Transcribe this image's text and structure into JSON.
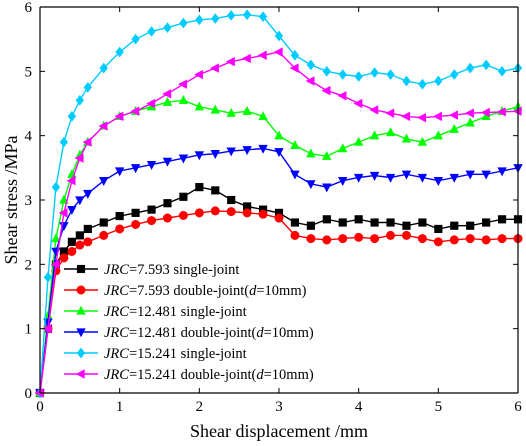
{
  "chart_data": {
    "type": "line",
    "xlabel": "Shear displacement /mm",
    "ylabel": "Shear stress /MPa",
    "xlim": [
      0,
      6
    ],
    "ylim": [
      0,
      6
    ],
    "x_ticks": [
      "0",
      "1",
      "2",
      "3",
      "4",
      "5",
      "6"
    ],
    "y_ticks": [
      "0",
      "1",
      "2",
      "3",
      "4",
      "5",
      "6"
    ],
    "grid": false,
    "legend_position": "bottom-left",
    "series": [
      {
        "name_italic": "JRC",
        "name_rest": "=7.593 single-joint",
        "name_sub_italic": "",
        "name_tail": "",
        "color": "#000000",
        "marker": "square",
        "points": [
          [
            0,
            0
          ],
          [
            0.1,
            1.0
          ],
          [
            0.2,
            2.0
          ],
          [
            0.3,
            2.2
          ],
          [
            0.4,
            2.35
          ],
          [
            0.5,
            2.45
          ],
          [
            0.6,
            2.55
          ],
          [
            0.8,
            2.65
          ],
          [
            1.0,
            2.75
          ],
          [
            1.2,
            2.8
          ],
          [
            1.4,
            2.85
          ],
          [
            1.6,
            2.95
          ],
          [
            1.8,
            3.05
          ],
          [
            2.0,
            3.2
          ],
          [
            2.2,
            3.15
          ],
          [
            2.4,
            3.0
          ],
          [
            2.6,
            2.9
          ],
          [
            2.8,
            2.85
          ],
          [
            3.0,
            2.8
          ],
          [
            3.2,
            2.65
          ],
          [
            3.4,
            2.6
          ],
          [
            3.6,
            2.7
          ],
          [
            3.8,
            2.65
          ],
          [
            4.0,
            2.7
          ],
          [
            4.2,
            2.65
          ],
          [
            4.4,
            2.65
          ],
          [
            4.6,
            2.6
          ],
          [
            4.8,
            2.65
          ],
          [
            5.0,
            2.55
          ],
          [
            5.2,
            2.6
          ],
          [
            5.4,
            2.6
          ],
          [
            5.6,
            2.65
          ],
          [
            5.8,
            2.7
          ],
          [
            6.0,
            2.7
          ]
        ]
      },
      {
        "name_italic": "JRC",
        "name_rest": "=7.593 double-joint(",
        "name_sub_italic": "d",
        "name_tail": "=10mm)",
        "color": "#ff0000",
        "marker": "circle",
        "points": [
          [
            0,
            0
          ],
          [
            0.1,
            1.0
          ],
          [
            0.2,
            1.9
          ],
          [
            0.3,
            2.1
          ],
          [
            0.4,
            2.2
          ],
          [
            0.5,
            2.3
          ],
          [
            0.6,
            2.35
          ],
          [
            0.8,
            2.45
          ],
          [
            1.0,
            2.55
          ],
          [
            1.2,
            2.62
          ],
          [
            1.4,
            2.68
          ],
          [
            1.6,
            2.72
          ],
          [
            1.8,
            2.76
          ],
          [
            2.0,
            2.8
          ],
          [
            2.2,
            2.83
          ],
          [
            2.4,
            2.82
          ],
          [
            2.6,
            2.8
          ],
          [
            2.8,
            2.78
          ],
          [
            3.0,
            2.72
          ],
          [
            3.2,
            2.45
          ],
          [
            3.4,
            2.4
          ],
          [
            3.6,
            2.38
          ],
          [
            3.8,
            2.4
          ],
          [
            4.0,
            2.42
          ],
          [
            4.2,
            2.4
          ],
          [
            4.4,
            2.45
          ],
          [
            4.6,
            2.45
          ],
          [
            4.8,
            2.4
          ],
          [
            5.0,
            2.35
          ],
          [
            5.2,
            2.38
          ],
          [
            5.4,
            2.4
          ],
          [
            5.6,
            2.38
          ],
          [
            5.8,
            2.4
          ],
          [
            6.0,
            2.4
          ]
        ]
      },
      {
        "name_italic": "JRC",
        "name_rest": "=12.481 single-joint",
        "name_sub_italic": "",
        "name_tail": "",
        "color": "#00ff00",
        "marker": "triangle-up",
        "points": [
          [
            0,
            0
          ],
          [
            0.1,
            1.2
          ],
          [
            0.2,
            2.4
          ],
          [
            0.3,
            3.0
          ],
          [
            0.4,
            3.4
          ],
          [
            0.5,
            3.7
          ],
          [
            0.6,
            3.9
          ],
          [
            0.8,
            4.15
          ],
          [
            1.0,
            4.3
          ],
          [
            1.2,
            4.38
          ],
          [
            1.4,
            4.45
          ],
          [
            1.6,
            4.52
          ],
          [
            1.8,
            4.55
          ],
          [
            2.0,
            4.45
          ],
          [
            2.2,
            4.4
          ],
          [
            2.4,
            4.35
          ],
          [
            2.6,
            4.38
          ],
          [
            2.8,
            4.3
          ],
          [
            3.0,
            4.0
          ],
          [
            3.2,
            3.85
          ],
          [
            3.4,
            3.72
          ],
          [
            3.6,
            3.68
          ],
          [
            3.8,
            3.8
          ],
          [
            4.0,
            3.9
          ],
          [
            4.2,
            4.0
          ],
          [
            4.4,
            4.05
          ],
          [
            4.6,
            3.95
          ],
          [
            4.8,
            3.9
          ],
          [
            5.0,
            4.0
          ],
          [
            5.2,
            4.1
          ],
          [
            5.4,
            4.2
          ],
          [
            5.6,
            4.3
          ],
          [
            5.8,
            4.38
          ],
          [
            6.0,
            4.45
          ]
        ]
      },
      {
        "name_italic": "JRC",
        "name_rest": "=12.481 double-joint(",
        "name_sub_italic": "d",
        "name_tail": "=10mm)",
        "color": "#0000ff",
        "marker": "triangle-down",
        "points": [
          [
            0,
            0
          ],
          [
            0.1,
            1.1
          ],
          [
            0.2,
            2.2
          ],
          [
            0.3,
            2.6
          ],
          [
            0.4,
            2.85
          ],
          [
            0.5,
            3.0
          ],
          [
            0.6,
            3.1
          ],
          [
            0.8,
            3.3
          ],
          [
            1.0,
            3.45
          ],
          [
            1.2,
            3.5
          ],
          [
            1.4,
            3.55
          ],
          [
            1.6,
            3.6
          ],
          [
            1.8,
            3.65
          ],
          [
            2.0,
            3.7
          ],
          [
            2.2,
            3.72
          ],
          [
            2.4,
            3.76
          ],
          [
            2.6,
            3.78
          ],
          [
            2.8,
            3.8
          ],
          [
            3.0,
            3.75
          ],
          [
            3.2,
            3.4
          ],
          [
            3.4,
            3.25
          ],
          [
            3.6,
            3.2
          ],
          [
            3.8,
            3.3
          ],
          [
            4.0,
            3.35
          ],
          [
            4.2,
            3.38
          ],
          [
            4.4,
            3.35
          ],
          [
            4.6,
            3.4
          ],
          [
            4.8,
            3.35
          ],
          [
            5.0,
            3.3
          ],
          [
            5.2,
            3.35
          ],
          [
            5.4,
            3.4
          ],
          [
            5.6,
            3.4
          ],
          [
            5.8,
            3.45
          ],
          [
            6.0,
            3.5
          ]
        ]
      },
      {
        "name_italic": "JRC",
        "name_rest": "=15.241 single-joint",
        "name_sub_italic": "",
        "name_tail": "",
        "color": "#00ccff",
        "marker": "diamond",
        "points": [
          [
            0,
            0
          ],
          [
            0.1,
            1.8
          ],
          [
            0.2,
            3.2
          ],
          [
            0.3,
            3.9
          ],
          [
            0.4,
            4.3
          ],
          [
            0.5,
            4.55
          ],
          [
            0.6,
            4.75
          ],
          [
            0.8,
            5.05
          ],
          [
            1.0,
            5.3
          ],
          [
            1.2,
            5.5
          ],
          [
            1.4,
            5.62
          ],
          [
            1.6,
            5.68
          ],
          [
            1.8,
            5.75
          ],
          [
            2.0,
            5.8
          ],
          [
            2.2,
            5.82
          ],
          [
            2.4,
            5.87
          ],
          [
            2.6,
            5.88
          ],
          [
            2.8,
            5.85
          ],
          [
            3.0,
            5.55
          ],
          [
            3.2,
            5.25
          ],
          [
            3.4,
            5.1
          ],
          [
            3.6,
            5.0
          ],
          [
            3.8,
            4.95
          ],
          [
            4.0,
            4.92
          ],
          [
            4.2,
            4.98
          ],
          [
            4.4,
            4.95
          ],
          [
            4.6,
            4.85
          ],
          [
            4.8,
            4.8
          ],
          [
            5.0,
            4.85
          ],
          [
            5.2,
            4.95
          ],
          [
            5.4,
            5.05
          ],
          [
            5.6,
            5.1
          ],
          [
            5.8,
            5.0
          ],
          [
            6.0,
            5.05
          ]
        ]
      },
      {
        "name_italic": "JRC",
        "name_rest": "=15.241 double-joint(",
        "name_sub_italic": "d",
        "name_tail": "=10mm)",
        "color": "#ff00ff",
        "marker": "triangle-left",
        "points": [
          [
            0,
            0
          ],
          [
            0.1,
            1.0
          ],
          [
            0.2,
            2.0
          ],
          [
            0.3,
            2.8
          ],
          [
            0.4,
            3.3
          ],
          [
            0.5,
            3.65
          ],
          [
            0.6,
            3.9
          ],
          [
            0.8,
            4.15
          ],
          [
            1.0,
            4.3
          ],
          [
            1.2,
            4.38
          ],
          [
            1.4,
            4.5
          ],
          [
            1.6,
            4.65
          ],
          [
            1.8,
            4.8
          ],
          [
            2.0,
            4.95
          ],
          [
            2.2,
            5.05
          ],
          [
            2.4,
            5.15
          ],
          [
            2.6,
            5.2
          ],
          [
            2.8,
            5.25
          ],
          [
            3.0,
            5.3
          ],
          [
            3.2,
            5.05
          ],
          [
            3.4,
            4.85
          ],
          [
            3.6,
            4.7
          ],
          [
            3.8,
            4.62
          ],
          [
            4.0,
            4.5
          ],
          [
            4.2,
            4.4
          ],
          [
            4.4,
            4.35
          ],
          [
            4.6,
            4.3
          ],
          [
            4.8,
            4.28
          ],
          [
            5.0,
            4.3
          ],
          [
            5.2,
            4.32
          ],
          [
            5.4,
            4.35
          ],
          [
            5.6,
            4.36
          ],
          [
            5.8,
            4.37
          ],
          [
            6.0,
            4.38
          ]
        ]
      }
    ]
  }
}
